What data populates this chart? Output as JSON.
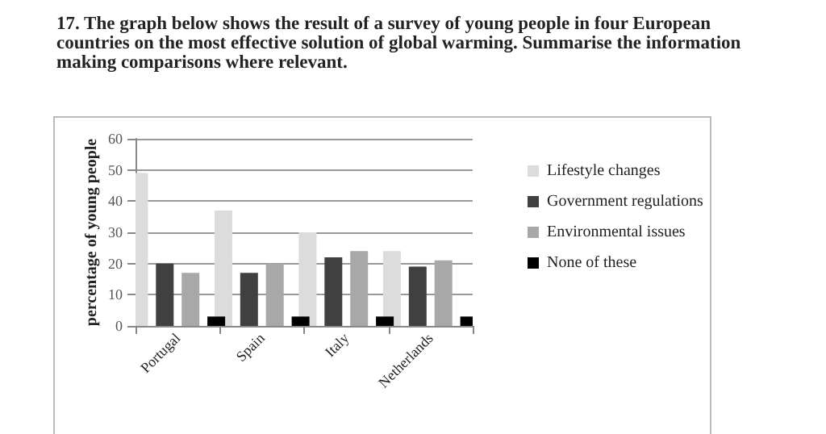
{
  "chart_data": {
    "type": "bar",
    "title": "17. The graph below shows the result of a survey of young people in four European countries on the most effective solution of global warming. Summarise the information making comparisons where relevant.",
    "ylabel": "percentage of young people",
    "categories": [
      "Portugal",
      "Spain",
      "Italy",
      "Netherlands"
    ],
    "series": [
      {
        "name": "Lifestyle changes",
        "color": "#dcdcdc",
        "values": [
          49,
          37,
          30,
          24
        ]
      },
      {
        "name": "Government regulations",
        "color": "#404040",
        "values": [
          20,
          17,
          22,
          19
        ]
      },
      {
        "name": "Environmental issues",
        "color": "#a8a8a8",
        "values": [
          17,
          20,
          24,
          21
        ]
      },
      {
        "name": "None of these",
        "color": "#000000",
        "values": [
          3,
          3,
          3,
          3
        ]
      }
    ],
    "ylim": [
      0,
      60
    ],
    "yticks": [
      0,
      10,
      20,
      30,
      40,
      50,
      60
    ],
    "grid": "y",
    "legend": "right"
  }
}
